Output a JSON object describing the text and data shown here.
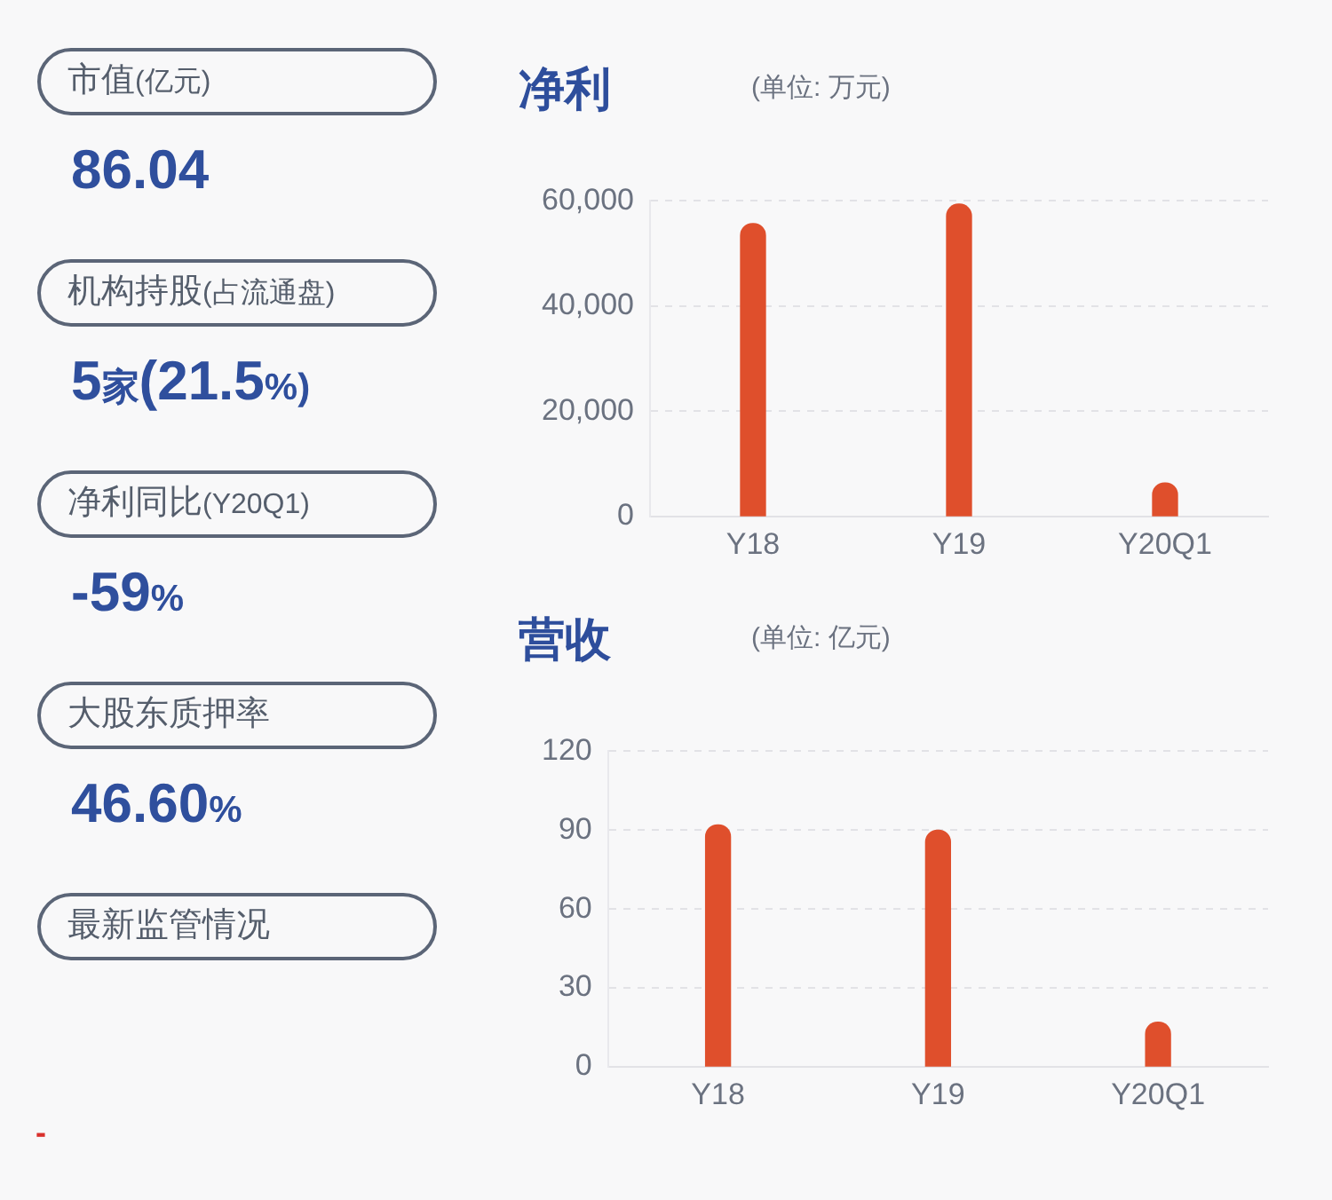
{
  "chart_data": [
    {
      "type": "other",
      "annotations": [
        "市值(亿元)",
        "86.04",
        "机构持股(占流通盘)",
        "5家(21.5%)",
        "净利同比(Y20Q1)",
        "-59%",
        "大股东质押率",
        "46.60%",
        "最新监管情况",
        "-"
      ]
    },
    {
      "type": "bar",
      "title": "净利",
      "subtitle": "(单位: 万元)",
      "categories": [
        "Y18",
        "Y19",
        "Y20Q1"
      ],
      "values": [
        55700,
        59400,
        6400
      ],
      "color": "#df4f2c",
      "ylim": [
        0,
        60000
      ],
      "yticks": [
        0,
        {
          "value": 20000,
          "label": "20,000"
        },
        {
          "value": 40000,
          "label": "40,000"
        },
        {
          "value": 60000,
          "label": "60,000"
        }
      ],
      "grid": "y"
    },
    {
      "type": "bar",
      "title": "营收",
      "subtitle": "(单位: 亿元)",
      "categories": [
        "Y18",
        "Y19",
        "Y20Q1"
      ],
      "values": [
        92,
        90,
        17
      ],
      "color": "#df4f2c",
      "ylim": [
        0,
        120
      ],
      "yticks": [
        0,
        30,
        60,
        90,
        120
      ],
      "grid": "y"
    }
  ]
}
